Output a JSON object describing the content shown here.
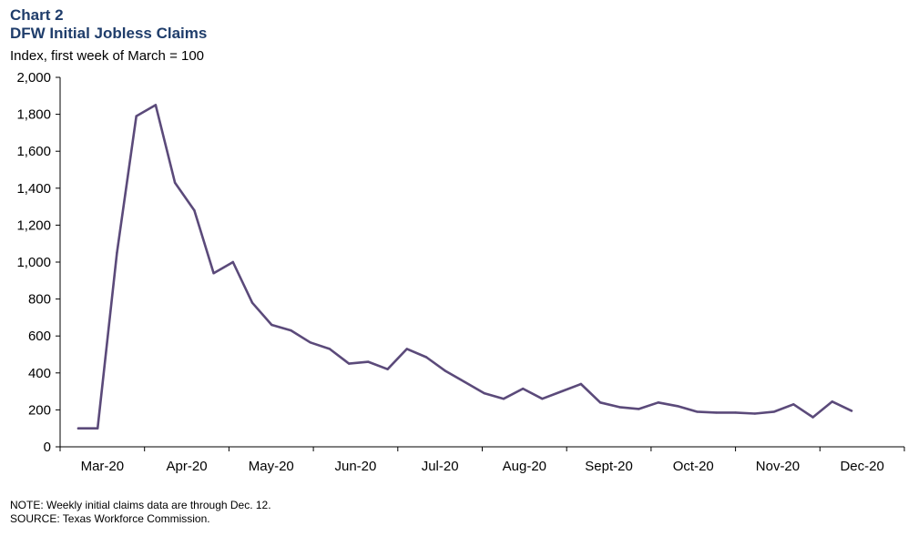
{
  "header": {
    "chart_label": "Chart 2",
    "title": "DFW Initial Jobless Claims",
    "subtitle": "Index,  first week of March = 100"
  },
  "footer": {
    "note": "NOTE: Weekly initial claims data are through Dec. 12.",
    "source": "SOURCE: Texas Workforce Commission."
  },
  "colors": {
    "series_line": "#5b4a7a",
    "axis": "#000000",
    "title": "#1f3d6b"
  },
  "chart_data": {
    "type": "line",
    "title": "DFW Initial Jobless Claims",
    "ylabel": "Index,  first week of March = 100",
    "xlabel": "",
    "ylim": [
      0,
      2000
    ],
    "yticks": [
      0,
      200,
      400,
      600,
      800,
      1000,
      1200,
      1400,
      1600,
      1800,
      2000
    ],
    "ytick_labels": [
      "0",
      "200",
      "400",
      "600",
      "800",
      "1,000",
      "1,200",
      "1,400",
      "1,600",
      "1,800",
      "2,000"
    ],
    "month_labels": [
      "Mar-20",
      "Apr-20",
      "May-20",
      "Jun-20",
      "Jul-20",
      "Aug-20",
      "Sept-20",
      "Oct-20",
      "Nov-20",
      "Dec-20"
    ],
    "grid": false,
    "legend": "none",
    "series": [
      {
        "values": [
          100,
          100,
          1050,
          1790,
          1850,
          1430,
          1280,
          940,
          1000,
          780,
          660,
          630,
          565,
          530,
          450,
          460,
          420,
          530,
          485,
          410,
          350,
          290,
          260,
          315,
          260,
          300,
          340,
          240,
          215,
          205,
          240,
          220,
          190,
          185,
          185,
          180,
          190,
          230,
          160,
          245,
          195
        ]
      }
    ]
  }
}
